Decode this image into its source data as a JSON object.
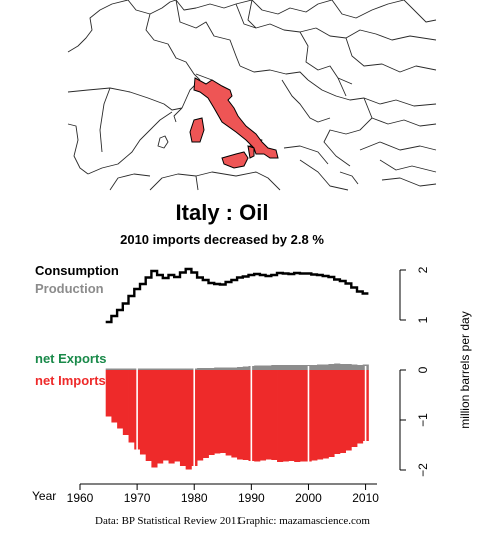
{
  "chart_data": {
    "type": "line",
    "title": "Italy :  Oil",
    "subtitle": "2010 imports decreased by 2.8 %",
    "legend": {
      "consumption": "Consumption",
      "production": "Production",
      "net_exports": "net Exports",
      "net_imports": "net Imports"
    },
    "ylabel": "million barrels per day",
    "xlabel": "Year",
    "top_ylim": [
      0.6,
      2.2
    ],
    "bottom_ylim": [
      -2.0,
      0.0
    ],
    "xlim": [
      1960,
      2012
    ],
    "x_ticks": [
      1960,
      1970,
      1980,
      1990,
      2000,
      2010
    ],
    "top_y_ticks": [
      1,
      2
    ],
    "bottom_y_ticks": [
      0,
      -1,
      -2
    ],
    "colors": {
      "consumption": "#000000",
      "production": "#8c8c8c",
      "net_exports": "#1a8a4a",
      "net_imports": "#ee2a2a",
      "italy": "#ee5555",
      "map_line": "#2a2a2a"
    },
    "x": [
      1965,
      1966,
      1967,
      1968,
      1969,
      1970,
      1971,
      1972,
      1973,
      1974,
      1975,
      1976,
      1977,
      1978,
      1979,
      1980,
      1981,
      1982,
      1983,
      1984,
      1985,
      1986,
      1987,
      1988,
      1989,
      1990,
      1991,
      1992,
      1993,
      1994,
      1995,
      1996,
      1997,
      1998,
      1999,
      2000,
      2001,
      2002,
      2003,
      2004,
      2005,
      2006,
      2007,
      2008,
      2009,
      2010
    ],
    "series": [
      {
        "name": "Consumption",
        "values": [
          0.96,
          1.08,
          1.2,
          1.33,
          1.48,
          1.62,
          1.72,
          1.85,
          1.98,
          1.9,
          1.84,
          1.9,
          1.86,
          1.95,
          2.02,
          1.95,
          1.85,
          1.8,
          1.74,
          1.72,
          1.71,
          1.76,
          1.8,
          1.85,
          1.87,
          1.9,
          1.92,
          1.9,
          1.88,
          1.9,
          1.94,
          1.93,
          1.92,
          1.94,
          1.93,
          1.93,
          1.91,
          1.9,
          1.88,
          1.86,
          1.81,
          1.78,
          1.73,
          1.65,
          1.57,
          1.53
        ]
      },
      {
        "name": "Production",
        "values": [
          0.03,
          0.03,
          0.03,
          0.03,
          0.03,
          0.03,
          0.03,
          0.03,
          0.03,
          0.03,
          0.03,
          0.03,
          0.03,
          0.03,
          0.03,
          0.03,
          0.04,
          0.04,
          0.04,
          0.05,
          0.05,
          0.05,
          0.05,
          0.06,
          0.07,
          0.08,
          0.09,
          0.09,
          0.09,
          0.1,
          0.1,
          0.1,
          0.1,
          0.1,
          0.1,
          0.1,
          0.1,
          0.11,
          0.11,
          0.12,
          0.13,
          0.12,
          0.12,
          0.11,
          0.1,
          0.11
        ]
      }
    ],
    "grid": false,
    "decade_separators": [
      1970,
      1980,
      1990,
      2000,
      2010
    ]
  },
  "caption": {
    "source": "Data: BP Statistical Review 2011",
    "graphic": "Graphic: mazamascience.com"
  },
  "map": {
    "highlight_country": "Italy"
  }
}
